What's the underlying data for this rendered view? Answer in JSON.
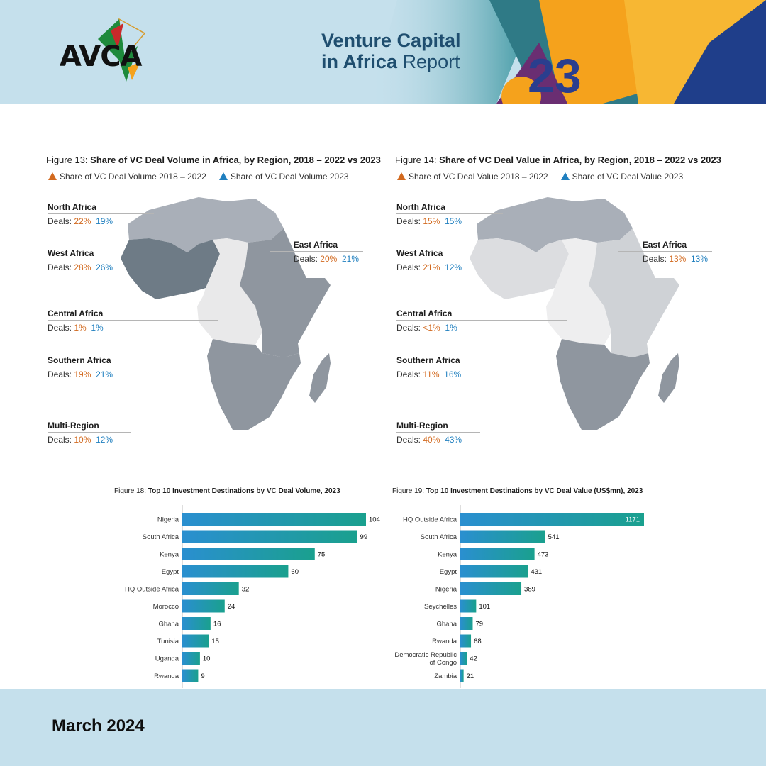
{
  "header": {
    "logo_text": "AVCA",
    "report_title_bold": "Venture Capital",
    "report_title_line2_bold": "in Africa",
    "report_title_line2_light": "Report",
    "colors": {
      "band": "#c5e0ec",
      "title": "#1f4e6f",
      "accent_orange": "#f5a21c",
      "accent_teal": "#3aa6a0"
    }
  },
  "fig13": {
    "prefix": "Figure 13:",
    "title": "Share of VC Deal Volume in Africa, by Region, 2018 – 2022 vs 2023",
    "legend_a": "Share of VC Deal Volume 2018 – 2022",
    "legend_b": "Share of VC Deal Volume 2023",
    "regions": [
      {
        "name": "North Africa",
        "deals_label": "Deals:",
        "a": "22%",
        "b": "19%"
      },
      {
        "name": "West Africa",
        "deals_label": "Deals:",
        "a": "28%",
        "b": "26%"
      },
      {
        "name": "Central Africa",
        "deals_label": "Deals:",
        "a": "1%",
        "b": "1%"
      },
      {
        "name": "Southern Africa",
        "deals_label": "Deals:",
        "a": "19%",
        "b": "21%"
      },
      {
        "name": "Multi-Region",
        "deals_label": "Deals:",
        "a": "10%",
        "b": "12%"
      },
      {
        "name": "East Africa",
        "deals_label": "Deals:",
        "a": "20%",
        "b": "21%"
      }
    ]
  },
  "fig14": {
    "prefix": "Figure 14:",
    "title": "Share of VC Deal Value in Africa, by Region, 2018 – 2022 vs 2023",
    "legend_a": "Share of VC Deal Value 2018 – 2022",
    "legend_b": "Share of VC Deal Value 2023",
    "regions": [
      {
        "name": "North Africa",
        "deals_label": "Deals:",
        "a": "15%",
        "b": "15%"
      },
      {
        "name": "West Africa",
        "deals_label": "Deals:",
        "a": "21%",
        "b": "12%"
      },
      {
        "name": "Central Africa",
        "deals_label": "Deals:",
        "a": "<1%",
        "b": "1%"
      },
      {
        "name": "Southern Africa",
        "deals_label": "Deals:",
        "a": "11%",
        "b": "16%"
      },
      {
        "name": "Multi-Region",
        "deals_label": "Deals:",
        "a": "40%",
        "b": "43%"
      },
      {
        "name": "East Africa",
        "deals_label": "Deals:",
        "a": "13%",
        "b": "13%"
      }
    ]
  },
  "chart_data": [
    {
      "type": "bar",
      "orientation": "horizontal",
      "prefix": "Figure 18:",
      "title": "Top 10 Investment Destinations by VC Deal Volume, 2023",
      "categories": [
        "Nigeria",
        "South Africa",
        "Kenya",
        "Egypt",
        "HQ Outside Africa",
        "Morocco",
        "Ghana",
        "Tunisia",
        "Uganda",
        "Rwanda"
      ],
      "values": [
        104,
        99,
        75,
        60,
        32,
        24,
        16,
        15,
        10,
        9
      ],
      "xlim": [
        0,
        104
      ],
      "bar_color_start": "#2a8fd0",
      "bar_color_end": "#1aa08e"
    },
    {
      "type": "bar",
      "orientation": "horizontal",
      "prefix": "Figure 19:",
      "title": "Top 10 Investment Destinations by VC Deal Value (US$mn), 2023",
      "categories": [
        "HQ Outside Africa",
        "South Africa",
        "Kenya",
        "Egypt",
        "Nigeria",
        "Seychelles",
        "Ghana",
        "Rwanda",
        "Democratic Republic of Congo",
        "Zambia"
      ],
      "values": [
        1171,
        541,
        473,
        431,
        389,
        101,
        79,
        68,
        42,
        21
      ],
      "xlim": [
        0,
        1171
      ],
      "bar_color_start": "#2a8fd0",
      "bar_color_end": "#1aa08e"
    },
    {
      "type": "map",
      "title": "Share of VC Deal Volume in Africa, by Region, 2018 – 2022 vs 2023",
      "regions": [
        "North Africa",
        "West Africa",
        "Central Africa",
        "Southern Africa",
        "East Africa",
        "Multi-Region"
      ],
      "series": [
        {
          "name": "Share of VC Deal Volume 2018 – 2022",
          "values": [
            22,
            28,
            1,
            19,
            20,
            10
          ]
        },
        {
          "name": "Share of VC Deal Volume 2023",
          "values": [
            19,
            26,
            1,
            21,
            21,
            12
          ]
        }
      ]
    },
    {
      "type": "map",
      "title": "Share of VC Deal Value in Africa, by Region, 2018 – 2022 vs 2023",
      "regions": [
        "North Africa",
        "West Africa",
        "Central Africa",
        "Southern Africa",
        "East Africa",
        "Multi-Region"
      ],
      "series": [
        {
          "name": "Share of VC Deal Value 2018 – 2022",
          "values": [
            "15",
            "21",
            "<1",
            "11",
            "13",
            "40"
          ]
        },
        {
          "name": "Share of VC Deal Value 2023",
          "values": [
            15,
            12,
            1,
            16,
            13,
            43
          ]
        }
      ]
    }
  ],
  "footer": {
    "date": "March 2024"
  }
}
